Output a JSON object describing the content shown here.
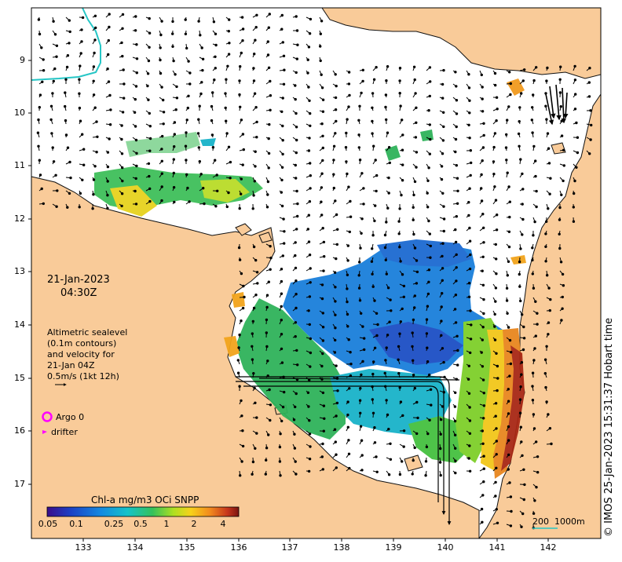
{
  "date_line1": "21-Jan-2023",
  "date_line2": "04:30Z",
  "legend_text": [
    "Altimetric sealevel",
    "(0.1m contours)",
    "and velocity for",
    "21-Jan 04Z",
    "0.5m/s (1kt 12h)"
  ],
  "argo_label": "Argo 0",
  "drifter_label": "drifter",
  "colorbar_title": "Chl-a mg/m3 OCi SNPP",
  "colorbar_ticks": [
    "0.05",
    "0.1",
    "0.25",
    "0.5",
    "1",
    "2",
    "4"
  ],
  "scale_label": "200  1000m",
  "credit": "© IMOS 25-Jan-2023 15:31:37 Hobart time",
  "y_ticks": [
    "9",
    "10",
    "11",
    "12",
    "13",
    "14",
    "15",
    "16",
    "17"
  ],
  "x_ticks": [
    "133",
    "134",
    "135",
    "136",
    "137",
    "138",
    "139",
    "140",
    "141",
    "142"
  ],
  "colors": {
    "land": "#f9cb99",
    "coast": "#111111",
    "argo": "#ff00ff",
    "drifter": "#ff00ff",
    "reef_line": "#26c6c6",
    "scale_line": "#26c6c6"
  }
}
